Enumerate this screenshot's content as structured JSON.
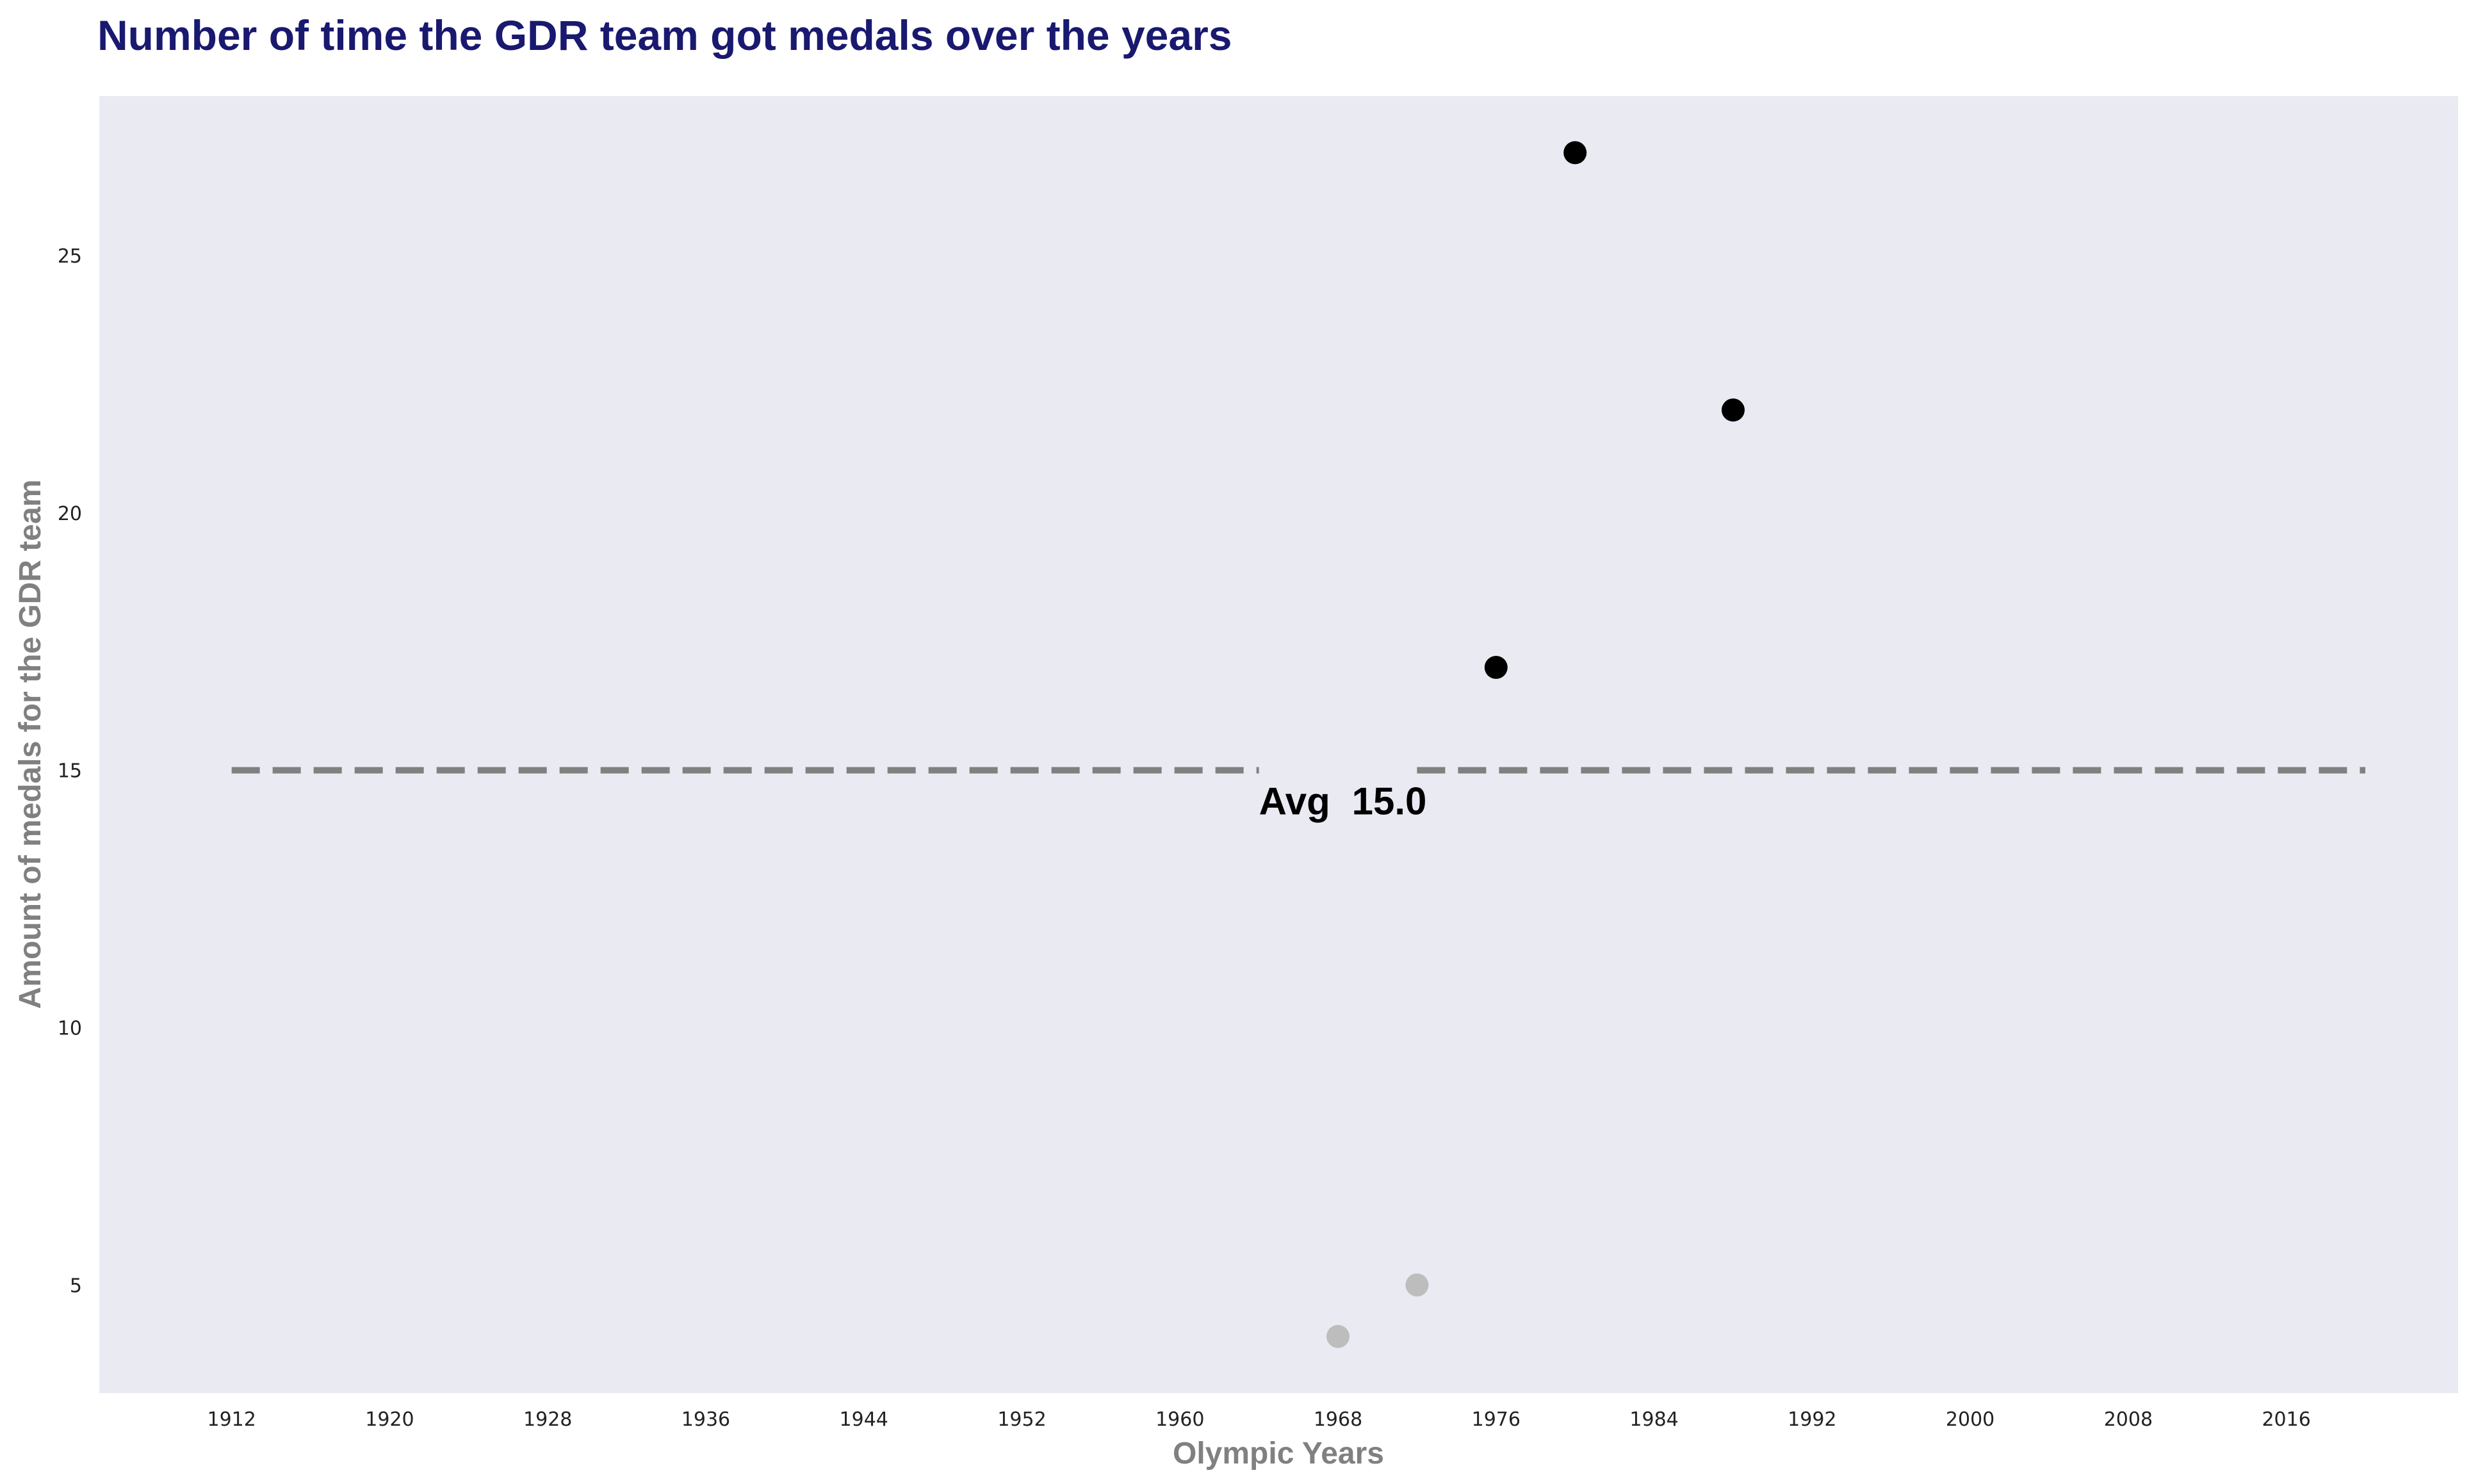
{
  "chart_data": {
    "type": "scatter",
    "title": "Number of time the GDR team got medals over the years",
    "xlabel": "Olympic Years",
    "ylabel": "Amount of medals for the GDR team",
    "xlim": [
      1905.3,
      2024.7
    ],
    "ylim": [
      2.9,
      28.1
    ],
    "x_ticks": [
      1912,
      1920,
      1928,
      1936,
      1944,
      1952,
      1960,
      1968,
      1976,
      1984,
      1992,
      2000,
      2008,
      2016
    ],
    "y_ticks": [
      5,
      10,
      15,
      20,
      25
    ],
    "grid": false,
    "background_color": "#eaeaf2",
    "points": [
      {
        "x": 1968,
        "y": 4,
        "color": "#bdbdbd"
      },
      {
        "x": 1972,
        "y": 5,
        "color": "#bdbdbd"
      },
      {
        "x": 1976,
        "y": 17,
        "color": "#000000"
      },
      {
        "x": 1980,
        "y": 27,
        "color": "#000000"
      },
      {
        "x": 1988,
        "y": 22,
        "color": "#000000"
      }
    ],
    "average": {
      "value": 15.0,
      "label": "Avg",
      "value_text": "15.0",
      "x_range": [
        1912,
        2020
      ],
      "gap": [
        1964,
        1972
      ],
      "color": "#808080",
      "style": "dashed"
    }
  }
}
